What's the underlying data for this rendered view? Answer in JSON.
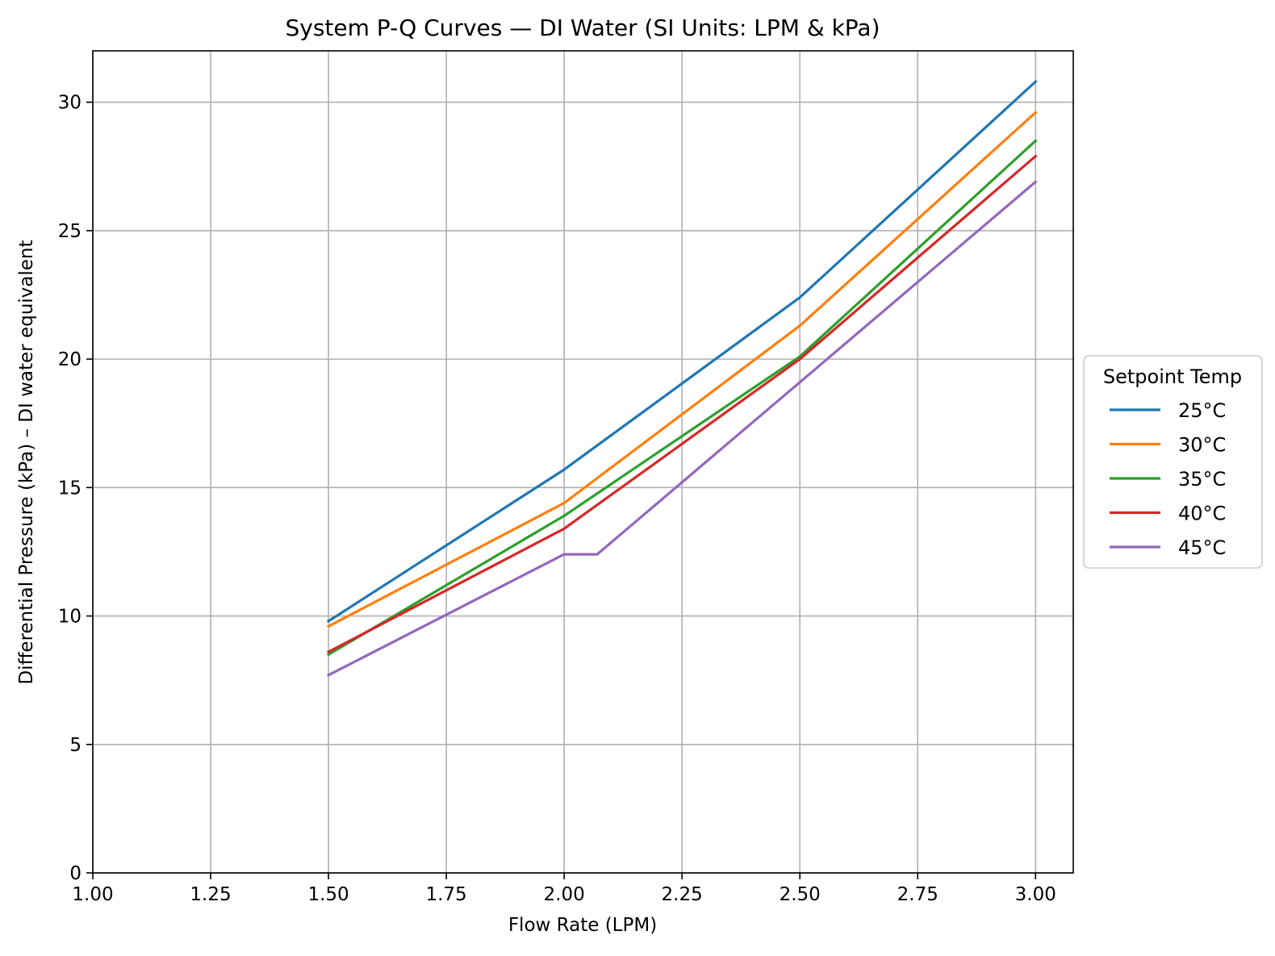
{
  "chart_data": {
    "type": "line",
    "title": "System P-Q Curves — DI Water (SI Units: LPM & kPa)",
    "xlabel": "Flow Rate (LPM)",
    "ylabel": "Differential Pressure (kPa) – DI water equivalent",
    "xlim": [
      1.0,
      3.08
    ],
    "ylim": [
      0,
      32
    ],
    "x_ticks": [
      1.0,
      1.25,
      1.5,
      1.75,
      2.0,
      2.25,
      2.5,
      2.75,
      3.0
    ],
    "x_tick_labels": [
      "1.00",
      "1.25",
      "1.50",
      "1.75",
      "2.00",
      "2.25",
      "2.50",
      "2.75",
      "3.00"
    ],
    "y_ticks": [
      0,
      5,
      10,
      15,
      20,
      25,
      30
    ],
    "y_tick_labels": [
      "0",
      "5",
      "10",
      "15",
      "20",
      "25",
      "30"
    ],
    "grid": true,
    "legend": {
      "title": "Setpoint Temp",
      "placement": "right-outside"
    },
    "series": [
      {
        "name": "25°C",
        "color": "#1f77b4",
        "points": [
          [
            1.5,
            9.8
          ],
          [
            2.0,
            15.7
          ],
          [
            2.5,
            22.4
          ],
          [
            3.0,
            30.8
          ]
        ]
      },
      {
        "name": "30°C",
        "color": "#ff7f0e",
        "points": [
          [
            1.5,
            9.6
          ],
          [
            2.0,
            14.4
          ],
          [
            2.5,
            21.3
          ],
          [
            3.0,
            29.6
          ]
        ]
      },
      {
        "name": "35°C",
        "color": "#2ca02c",
        "points": [
          [
            1.5,
            8.5
          ],
          [
            2.0,
            13.9
          ],
          [
            2.5,
            20.1
          ],
          [
            3.0,
            28.5
          ]
        ]
      },
      {
        "name": "40°C",
        "color": "#d62728",
        "points": [
          [
            1.5,
            8.6
          ],
          [
            2.0,
            13.4
          ],
          [
            2.5,
            20.0
          ],
          [
            3.0,
            27.9
          ]
        ]
      },
      {
        "name": "45°C",
        "color": "#9467bd",
        "points": [
          [
            1.5,
            7.7
          ],
          [
            2.0,
            12.4
          ],
          [
            2.07,
            12.4
          ],
          [
            2.5,
            19.1
          ],
          [
            3.0,
            26.9
          ]
        ]
      }
    ]
  }
}
